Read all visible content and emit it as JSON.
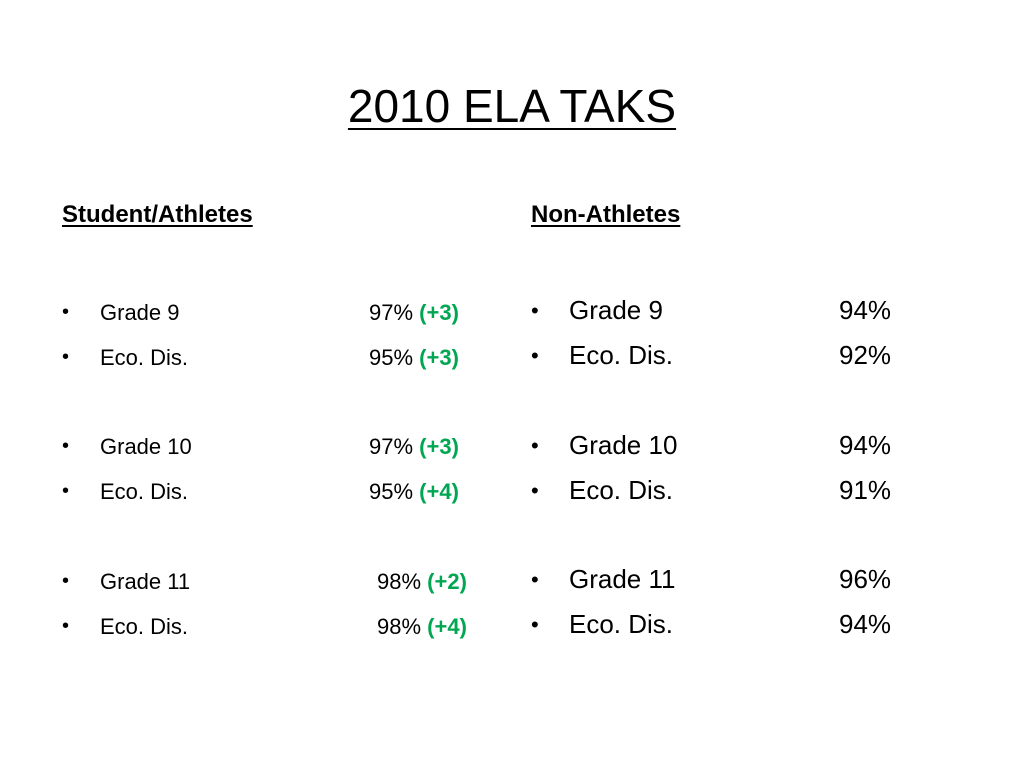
{
  "title": "2010 ELA TAKS",
  "bullet_glyph": "•",
  "left": {
    "heading": "Student/Athletes",
    "rows": [
      {
        "label": "Grade 9",
        "value": "97%",
        "delta": "(+3)"
      },
      {
        "label": "Eco. Dis.",
        "value": "95%",
        "delta": "(+3)"
      },
      {
        "label": "Grade 10",
        "value": "97%",
        "delta": "(+3)"
      },
      {
        "label": "Eco. Dis.",
        "value": "95%",
        "delta": "(+4)"
      },
      {
        "label": "Grade 11",
        "value": "98%",
        "delta": "(+2)"
      },
      {
        "label": "Eco. Dis.",
        "value": "98%",
        "delta": "(+4)"
      }
    ]
  },
  "right": {
    "heading": "Non-Athletes",
    "rows": [
      {
        "label": "Grade 9",
        "value": "94%"
      },
      {
        "label": "Eco. Dis.",
        "value": "92%"
      },
      {
        "label": "Grade 10",
        "value": "94%"
      },
      {
        "label": "Eco. Dis.",
        "value": "91%"
      },
      {
        "label": "Grade 11",
        "value": "96%"
      },
      {
        "label": "Eco. Dis.",
        "value": "94%"
      }
    ]
  },
  "colors": {
    "delta": "#00a651",
    "text": "#000000",
    "background": "#ffffff"
  }
}
